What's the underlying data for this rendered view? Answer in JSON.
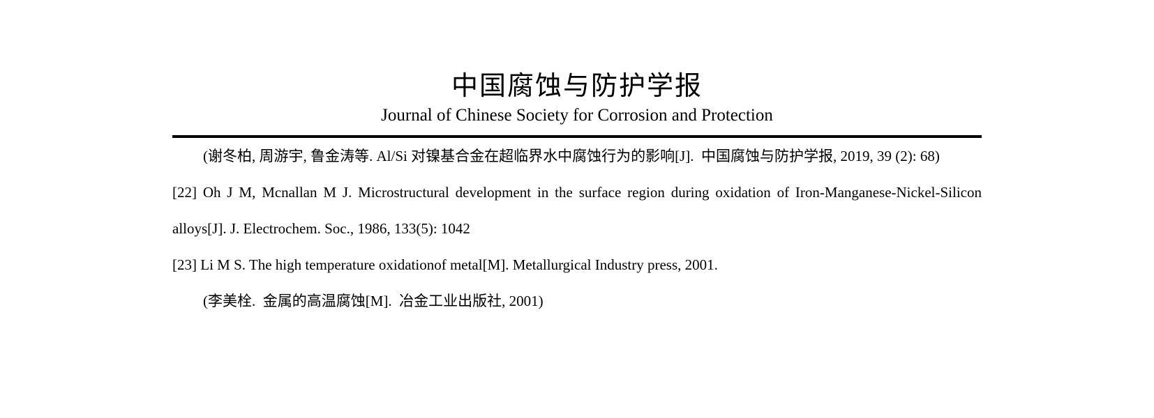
{
  "header": {
    "journal_title_zh": "中国腐蚀与防护学报",
    "journal_title_en": "Journal of Chinese Society for Corrosion and Protection"
  },
  "references": {
    "lines": [
      {
        "text": "(谢冬柏, 周游宇, 鲁金涛等. Al/Si 对镍基合金在超临界水中腐蚀行为的影响[J].  中国腐蚀与防护学报, 2019, 39 (2): 68)"
      },
      {
        "text": "[22] Oh J M, Mcnallan M J. Microstructural development in the surface region during oxidation of Iron-Manganese-Nickel-Silicon"
      },
      {
        "text": "alloys[J]. J. Electrochem. Soc., 1986, 133(5): 1042"
      },
      {
        "text": "[23] Li M S. The high temperature oxidationof metal[M]. Metallurgical Industry press, 2001."
      },
      {
        "text": "(李美栓.  金属的高温腐蚀[M].  冶金工业出版社, 2001)"
      }
    ]
  },
  "colors": {
    "text": "#000000",
    "background": "#ffffff",
    "rule": "#000000"
  }
}
